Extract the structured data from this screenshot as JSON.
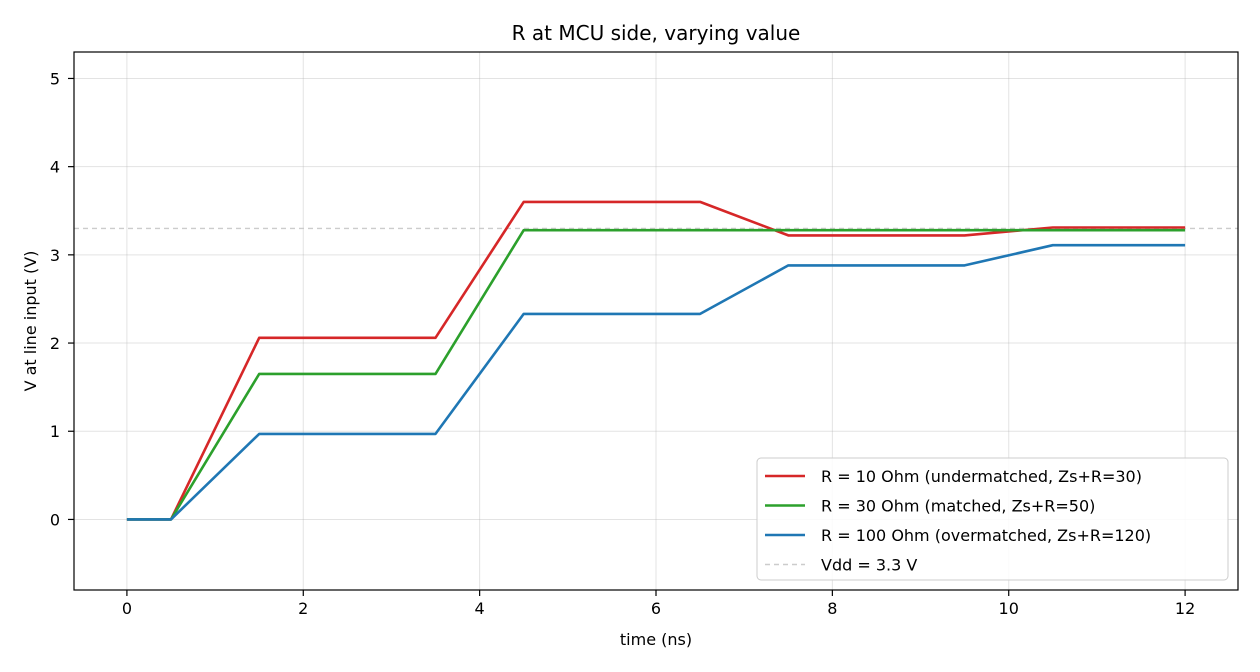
{
  "chart_data": {
    "type": "line",
    "title": "R at MCU side, varying value",
    "xlabel": "time (ns)",
    "ylabel": "V at line input (V)",
    "xlim": [
      -0.6,
      12.6
    ],
    "ylim": [
      -0.8,
      5.3
    ],
    "xticks": [
      0,
      2,
      4,
      6,
      8,
      10,
      12
    ],
    "yticks": [
      0,
      1,
      2,
      3,
      4,
      5
    ],
    "grid": true,
    "legend_position": "lower-right",
    "series": [
      {
        "name": "R = 10 Ohm (undermatched, Zs+R=30)",
        "color": "#d62728",
        "x": [
          0,
          0.5,
          1.5,
          3.5,
          4.5,
          6.5,
          7.5,
          9.5,
          10.5,
          12
        ],
        "y": [
          0,
          0,
          2.06,
          2.06,
          3.6,
          3.6,
          3.22,
          3.22,
          3.31,
          3.31
        ]
      },
      {
        "name": "R = 30 Ohm (matched, Zs+R=50)",
        "color": "#2ca02c",
        "x": [
          0,
          0.5,
          1.5,
          3.5,
          4.5,
          6.5,
          7.5,
          9.5,
          10.5,
          12
        ],
        "y": [
          0,
          0,
          1.65,
          1.65,
          3.28,
          3.28,
          3.28,
          3.28,
          3.28,
          3.28
        ]
      },
      {
        "name": "R = 100 Ohm (overmatched, Zs+R=120)",
        "color": "#1f77b4",
        "x": [
          0,
          0.5,
          1.5,
          3.5,
          4.5,
          6.5,
          7.5,
          9.5,
          10.5,
          12
        ],
        "y": [
          0,
          0,
          0.97,
          0.97,
          2.33,
          2.33,
          2.88,
          2.88,
          3.11,
          3.11
        ]
      }
    ],
    "reference_line": {
      "name": "Vdd = 3.3 V",
      "y": 3.3,
      "color": "#cccccc",
      "style": "dashed"
    }
  }
}
